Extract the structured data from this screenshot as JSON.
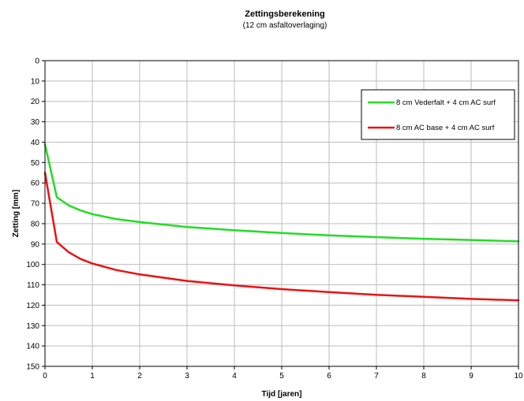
{
  "chart_data": {
    "type": "line",
    "title": "Zettingsberekening",
    "subtitle": "(12 cm asfaltoverlaging)",
    "xlabel": "Tijd [jaren]",
    "ylabel": "Zetting [mm]",
    "xlim": [
      0,
      10
    ],
    "ylim": [
      0,
      150
    ],
    "y_inverted": true,
    "x_ticks": [
      0,
      1,
      2,
      3,
      4,
      5,
      6,
      7,
      8,
      9,
      10
    ],
    "y_ticks": [
      0,
      10,
      20,
      30,
      40,
      50,
      60,
      70,
      80,
      90,
      100,
      110,
      120,
      130,
      140,
      150
    ],
    "grid": true,
    "legend_position": "top-right",
    "series": [
      {
        "name": "8 cm Vederfalt + 4 cm AC surf",
        "color": "#22dd22",
        "x": [
          0,
          0.25,
          0.5,
          0.75,
          1,
          1.5,
          2,
          3,
          4,
          5,
          6,
          7,
          8,
          9,
          10
        ],
        "y": [
          41,
          67,
          71,
          73.5,
          75.3,
          77.7,
          79.2,
          81.6,
          83.2,
          84.6,
          85.7,
          86.6,
          87.4,
          88,
          88.7
        ]
      },
      {
        "name": "8 cm AC base + 4 cm AC surf",
        "color": "#ee1111",
        "x": [
          0,
          0.25,
          0.5,
          0.75,
          1,
          1.5,
          2,
          3,
          4,
          5,
          6,
          7,
          8,
          9,
          10
        ],
        "y": [
          55,
          89,
          94,
          97.3,
          99.5,
          102.7,
          104.9,
          108.1,
          110.3,
          112.1,
          113.6,
          114.9,
          115.9,
          116.9,
          117.6
        ]
      }
    ]
  }
}
